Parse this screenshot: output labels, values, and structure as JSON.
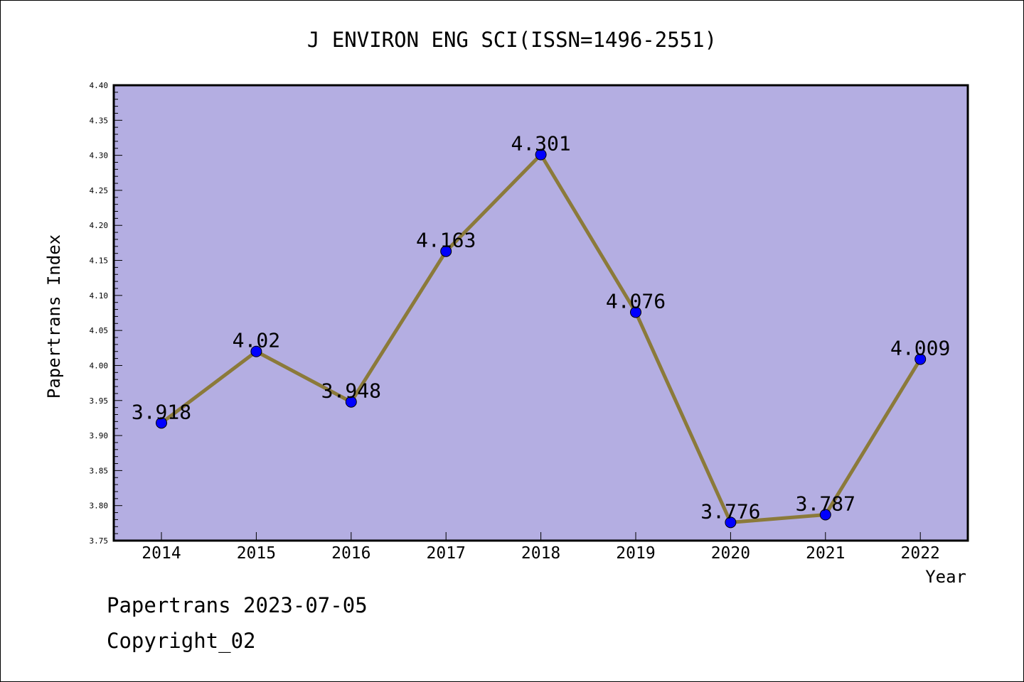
{
  "chart_data": {
    "type": "line",
    "title": "J ENVIRON ENG SCI(ISSN=1496-2551)",
    "xlabel": "Year",
    "ylabel": "Papertrans Index",
    "categories": [
      "2014",
      "2015",
      "2016",
      "2017",
      "2018",
      "2019",
      "2020",
      "2021",
      "2022"
    ],
    "series": [
      {
        "values": [
          3.918,
          4.02,
          3.948,
          4.163,
          4.301,
          4.076,
          3.776,
          3.787,
          4.009
        ]
      }
    ],
    "data_labels": [
      "3.918",
      "4.02",
      "3.948",
      "4.163",
      "4.301",
      "4.076",
      "3.776",
      "3.787",
      "4.009"
    ],
    "ylim": [
      3.75,
      4.4
    ],
    "y_ticks": [
      "3.75",
      "3.80",
      "3.85",
      "3.90",
      "3.95",
      "4.00",
      "4.05",
      "4.10",
      "4.15",
      "4.20",
      "4.25",
      "4.30",
      "4.35",
      "4.40"
    ],
    "grid": false,
    "legend": "none",
    "colors": {
      "plot_background": "#b4aee2",
      "line": "#8b7a3a",
      "marker": "#0000ff"
    }
  },
  "footer": {
    "source": "Papertrans 2023-07-05",
    "copyright": "Copyright_02"
  }
}
